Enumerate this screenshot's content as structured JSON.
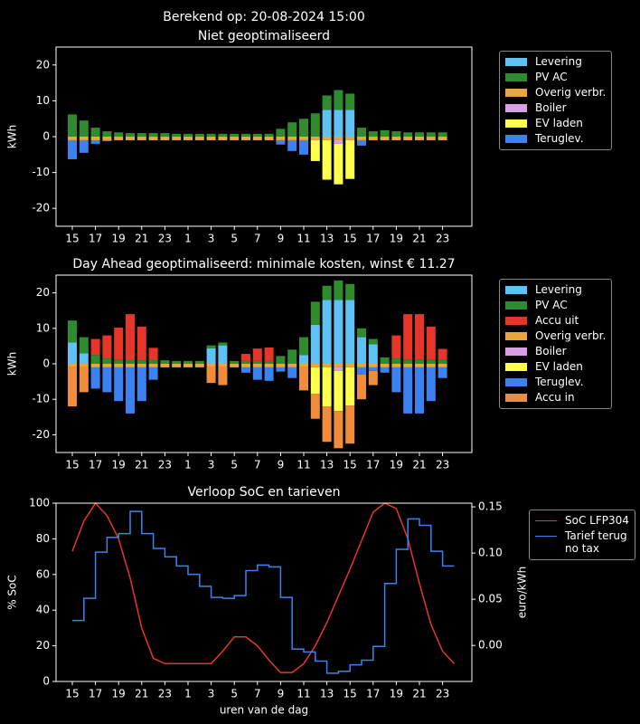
{
  "title": "Berekend op: 20-08-2024 15:00",
  "chart_data": [
    {
      "type": "bar",
      "title": "Niet geoptimaliseerd",
      "ylabel": "kWh",
      "categories": [
        "15",
        null,
        "17",
        null,
        "19",
        null,
        "21",
        null,
        "23",
        null,
        "1",
        null,
        "3",
        null,
        "5",
        null,
        "7",
        null,
        "9",
        null,
        "11",
        null,
        "13",
        null,
        "15",
        null,
        "17",
        null,
        "19",
        null,
        "21",
        null,
        "23"
      ],
      "ylim": [
        -25,
        25
      ],
      "yticks": [
        -20,
        -10,
        0,
        10,
        20
      ],
      "legend": "right",
      "series": [
        {
          "name": "Levering",
          "color": "#5ec2f5",
          "values": [
            0,
            0,
            0,
            0,
            0,
            0,
            0,
            0,
            0,
            0,
            0,
            0,
            0,
            0,
            0,
            0,
            0,
            0,
            0,
            0,
            0,
            0,
            7.5,
            7.5,
            7.5,
            0,
            0,
            0,
            0,
            0,
            0,
            0,
            0
          ]
        },
        {
          "name": "PV AC",
          "color": "#2e8b2e",
          "values": [
            6.2,
            4.5,
            2.5,
            1.5,
            1.2,
            1.0,
            1.0,
            1.0,
            1.0,
            0.8,
            0.8,
            0.8,
            0.8,
            0.8,
            0.8,
            0.8,
            0.8,
            0.8,
            2.2,
            4.0,
            5.0,
            6.5,
            4.0,
            5.5,
            4.5,
            2.5,
            1.5,
            1.8,
            1.5,
            1.2,
            1.2,
            1.2,
            1.2
          ]
        },
        {
          "name": "Overig verbr.",
          "color": "#e8a63c",
          "values": [
            -1,
            -1,
            -1,
            -1,
            -1,
            -1,
            -1,
            -1,
            -1,
            -1,
            -1,
            -1,
            -1,
            -1,
            -1,
            -1,
            -1,
            -1,
            -1,
            -1,
            -1,
            -1,
            -1,
            -1,
            -1,
            -1,
            -1,
            -1,
            -1,
            -1,
            -1,
            -1,
            -1
          ]
        },
        {
          "name": "Boiler",
          "color": "#d9a0e8",
          "values": [
            0,
            0,
            0,
            0,
            0,
            0,
            0,
            0,
            0,
            0,
            0,
            0,
            0,
            0,
            0,
            0,
            0,
            0,
            0,
            0,
            0,
            0,
            0,
            -1,
            0,
            0,
            0,
            0,
            0,
            0,
            0,
            0,
            0
          ]
        },
        {
          "name": "EV laden",
          "color": "#ffff4d",
          "values": [
            0,
            0,
            0,
            0,
            0,
            0,
            0,
            0,
            0,
            0,
            0,
            0,
            0,
            0,
            0,
            0,
            0,
            0,
            0,
            0,
            0,
            -5.8,
            -11,
            -11.3,
            -10.8,
            0,
            0,
            0,
            0,
            0,
            0,
            0,
            0
          ]
        },
        {
          "name": "Teruglev.",
          "color": "#3b82f0",
          "values": [
            -5.3,
            -3.5,
            -1.0,
            -0.3,
            0,
            0,
            0,
            0,
            0,
            0,
            0,
            0,
            0,
            0,
            0,
            0,
            0,
            0,
            -1.2,
            -3.0,
            -4.0,
            0,
            0,
            0,
            0,
            -1.5,
            0,
            0,
            0,
            0,
            0,
            0,
            0
          ]
        }
      ]
    },
    {
      "type": "bar",
      "title": "Day Ahead geoptimaliseerd: minimale kosten, winst € 11.27",
      "ylabel": "kWh",
      "categories": [
        "15",
        null,
        "17",
        null,
        "19",
        null,
        "21",
        null,
        "23",
        null,
        "1",
        null,
        "3",
        null,
        "5",
        null,
        "7",
        null,
        "9",
        null,
        "11",
        null,
        "13",
        null,
        "15",
        null,
        "17",
        null,
        "19",
        null,
        "21",
        null,
        "23"
      ],
      "ylim": [
        -25,
        25
      ],
      "yticks": [
        -20,
        -10,
        0,
        10,
        20
      ],
      "legend": "right",
      "series": [
        {
          "name": "Levering",
          "color": "#5ec2f5",
          "values": [
            6,
            3,
            0,
            0,
            0,
            0,
            0,
            0,
            0,
            0,
            0,
            0,
            4.4,
            5.2,
            0,
            0,
            0,
            0,
            0,
            0,
            2.5,
            11,
            18,
            18,
            18,
            7.5,
            5.5,
            0,
            0,
            0,
            0,
            0,
            0
          ]
        },
        {
          "name": "PV AC",
          "color": "#2e8b2e",
          "values": [
            6.2,
            4.5,
            2.5,
            1.5,
            1.2,
            1.0,
            1.0,
            1.0,
            1.0,
            0.8,
            0.8,
            0.8,
            0.8,
            0.8,
            0.8,
            0.8,
            0.8,
            0.8,
            2.2,
            4.0,
            5.0,
            6.5,
            4.0,
            5.5,
            4.5,
            2.5,
            1.5,
            1.8,
            1.5,
            1.2,
            1.2,
            1.2,
            1.2
          ]
        },
        {
          "name": "Accu uit",
          "color": "#e8352a",
          "values": [
            0,
            0,
            4.5,
            6.5,
            9,
            13,
            9.5,
            3.5,
            0,
            0,
            0,
            0,
            0,
            0,
            0,
            2,
            3.5,
            3.8,
            0,
            0,
            0,
            0,
            0,
            0,
            0,
            0,
            0,
            0,
            6.5,
            12.8,
            12.8,
            9.3,
            3
          ]
        },
        {
          "name": "Overig verbr.",
          "color": "#e8a63c",
          "values": [
            -1,
            -1,
            -1,
            -1,
            -1,
            -1,
            -1,
            -1,
            -1,
            -1,
            -1,
            -1,
            -1,
            -1,
            -1,
            -1,
            -1,
            -1,
            -1,
            -1,
            -1,
            -1,
            -1,
            -1,
            -1,
            -1,
            -1,
            -1,
            -1,
            -1,
            -1,
            -1,
            -1
          ]
        },
        {
          "name": "Boiler",
          "color": "#d9a0e8",
          "values": [
            0,
            0,
            0,
            0,
            0,
            0,
            0,
            0,
            0,
            0,
            0,
            0,
            0,
            0,
            0,
            0,
            0,
            0,
            0,
            0,
            0,
            0,
            0,
            -1,
            0,
            0,
            0,
            0,
            0,
            0,
            0,
            0,
            0
          ]
        },
        {
          "name": "EV laden",
          "color": "#ffff4d",
          "values": [
            0,
            0,
            0,
            0,
            0,
            0,
            0,
            0,
            0,
            0,
            0,
            0,
            0,
            0,
            0,
            0,
            0,
            0,
            0,
            0,
            0,
            -7.5,
            -11,
            -11.3,
            -10.8,
            0,
            0,
            0,
            0,
            0,
            0,
            0,
            0
          ]
        },
        {
          "name": "Teruglev.",
          "color": "#3b82f0",
          "values": [
            0,
            0,
            -6,
            -7,
            -9.5,
            -13,
            -9.5,
            -3.5,
            0,
            0,
            0,
            0,
            0,
            0,
            0,
            -1.5,
            -3.5,
            -3.8,
            -1.2,
            -3.0,
            0,
            0,
            0,
            0,
            0,
            -2,
            -1,
            -1.5,
            -7,
            -13,
            -13,
            -9.5,
            -3
          ]
        },
        {
          "name": "Accu in",
          "color": "#f08c3c",
          "values": [
            -11,
            -7,
            0,
            0,
            0,
            0,
            0,
            0,
            0,
            0,
            0,
            0,
            -4.4,
            -5,
            0,
            0,
            0,
            0,
            0,
            0,
            -6.5,
            -7,
            -10,
            -10.5,
            -10.7,
            -7,
            -4,
            0,
            0,
            0,
            0,
            0,
            0
          ]
        }
      ]
    },
    {
      "type": "line",
      "title": "Verloop SoC en tarieven",
      "ylabel": "% SoC",
      "y2label": "euro/kWh",
      "xlabel": "uren van de dag",
      "categories": [
        "15",
        null,
        "17",
        null,
        "19",
        null,
        "21",
        null,
        "23",
        null,
        "1",
        null,
        "3",
        null,
        "5",
        null,
        "7",
        null,
        "9",
        null,
        "11",
        null,
        "13",
        null,
        "15",
        null,
        "17",
        null,
        "19",
        null,
        "21",
        null,
        "23",
        null
      ],
      "ylim": [
        0,
        100
      ],
      "yticks": [
        0,
        20,
        40,
        60,
        80,
        100
      ],
      "y2lim": [
        -0.039,
        0.154
      ],
      "y2ticks": [
        {
          "value": 0,
          "label": "0.00"
        },
        0.05,
        {
          "value": 0.1,
          "label": "0.10"
        },
        0.15
      ],
      "legend": "right",
      "series": [
        {
          "name": "SoC LFP304",
          "color": "#e8352a",
          "values": [
            73,
            90,
            100,
            93,
            80,
            58,
            30,
            13,
            10,
            10,
            10,
            10,
            10,
            17,
            25,
            25,
            20,
            12,
            5,
            5,
            10,
            20,
            33,
            48,
            63,
            79,
            95,
            100,
            97,
            80,
            55,
            32,
            17,
            10
          ]
        },
        {
          "name": "Tarief terug\nno tax",
          "color": "#3b82f0",
          "axis": "y2",
          "drawstyle": "steps-post",
          "values": [
            0.027,
            0.051,
            0.101,
            0.117,
            0.121,
            0.145,
            0.121,
            0.105,
            0.096,
            0.086,
            0.077,
            0.064,
            0.052,
            0.051,
            0.054,
            0.081,
            0.087,
            0.085,
            0.052,
            -0.004,
            -0.007,
            -0.017,
            -0.03,
            -0.028,
            -0.021,
            -0.016,
            -0.001,
            0.067,
            0.104,
            0.137,
            0.13,
            0.102,
            0.086,
            0.086
          ]
        }
      ]
    }
  ]
}
